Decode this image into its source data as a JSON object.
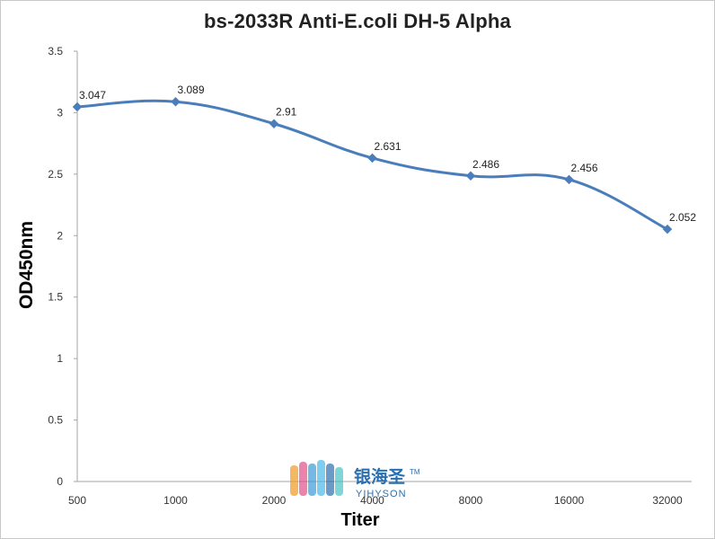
{
  "chart_data": {
    "type": "line",
    "title": "bs-2033R Anti-E.coli DH-5 Alpha",
    "xlabel": "Titer",
    "ylabel": "OD450nm",
    "categories": [
      "500",
      "1000",
      "2000",
      "4000",
      "8000",
      "16000",
      "32000"
    ],
    "series": [
      {
        "values": [
          3.047,
          3.089,
          2.91,
          2.631,
          2.486,
          2.456,
          2.052
        ]
      }
    ],
    "data_labels": [
      "3.047",
      "3.089",
      "2.91",
      "2.631",
      "2.486",
      "2.456",
      "2.052"
    ],
    "ylim": [
      0,
      3.5
    ],
    "yticks": [
      "0",
      "0.5",
      "1",
      "1.5",
      "2",
      "2.5",
      "3",
      "3.5"
    ],
    "ytick_values": [
      0,
      0.5,
      1,
      1.5,
      2,
      2.5,
      3,
      3.5
    ],
    "grid": false,
    "legend": "none",
    "line_color": "#4a7ebb",
    "marker": "diamond"
  },
  "watermark": {
    "text_cn": "银海圣",
    "text_en": "YIHYSON",
    "tm": "TM"
  }
}
